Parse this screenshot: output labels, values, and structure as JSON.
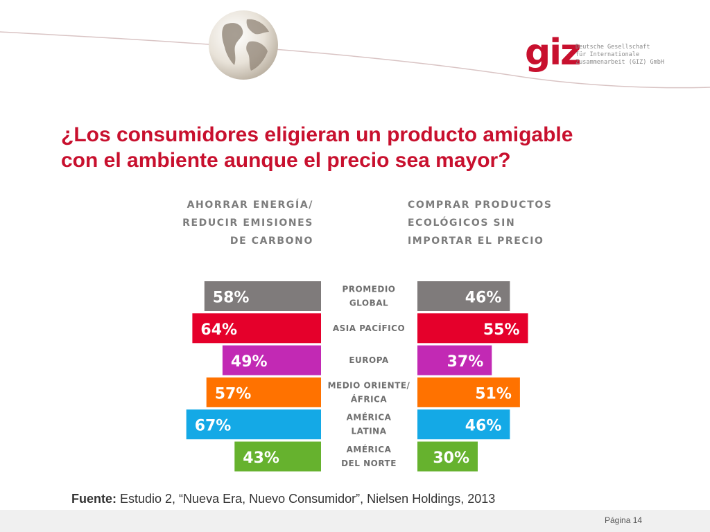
{
  "slide": {
    "title_line1": "¿Los consumidores eligieran un producto amigable",
    "title_line2": "con el ambiente aunque el precio sea mayor?",
    "source_label": "Fuente:",
    "source_text": " Estudio 2, “Nueva Era, Nuevo Consumidor”, Nielsen Holdings, 2013",
    "page_label": "Página 14"
  },
  "logo": {
    "mark": "giz",
    "line1": "Deutsche Gesellschaft",
    "line2": "für Internationale",
    "line3": "Zusammenarbeit (GIZ) GmbH",
    "color": "#c8102e"
  },
  "icons": {
    "globe": "globe-icon"
  },
  "chart_data": {
    "type": "bar",
    "categories": [
      "PROMEDIO GLOBAL",
      "ASIA PACÍFICO",
      "EUROPA",
      "MEDIO ORIENTE/ ÁFRICA",
      "AMÉRICA LATINA",
      "AMÉRICA DEL NORTE"
    ],
    "category_lines": [
      [
        "PROMEDIO",
        "GLOBAL"
      ],
      [
        "ASIA PACÍFICO"
      ],
      [
        "EUROPA"
      ],
      [
        "MEDIO ORIENTE/",
        "ÁFRICA"
      ],
      [
        "AMÉRICA",
        "LATINA"
      ],
      [
        "AMÉRICA",
        "DEL NORTE"
      ]
    ],
    "colors": [
      "#7f7b7b",
      "#e5002b",
      "#c229b4",
      "#ff7200",
      "#14a9e6",
      "#66b22e"
    ],
    "series": [
      {
        "name": "AHORRAR ENERGÍA/ REDUCIR EMISIONES DE CARBONO",
        "name_lines": [
          "AHORRAR ENERGÍA/",
          "REDUCIR EMISIONES",
          "DE CARBONO"
        ],
        "values": [
          58,
          64,
          49,
          57,
          67,
          43
        ],
        "labels": [
          "58%",
          "64%",
          "49%",
          "57%",
          "67%",
          "43%"
        ]
      },
      {
        "name": "COMPRAR PRODUCTOS ECOLÓGICOS SIN IMPORTAR EL PRECIO",
        "name_lines": [
          "COMPRAR PRODUCTOS",
          "ECOLÓGICOS SIN",
          "IMPORTAR EL PRECIO"
        ],
        "values": [
          46,
          55,
          37,
          51,
          46,
          30
        ],
        "labels": [
          "46%",
          "55%",
          "37%",
          "51%",
          "46%",
          "30%"
        ]
      }
    ]
  }
}
